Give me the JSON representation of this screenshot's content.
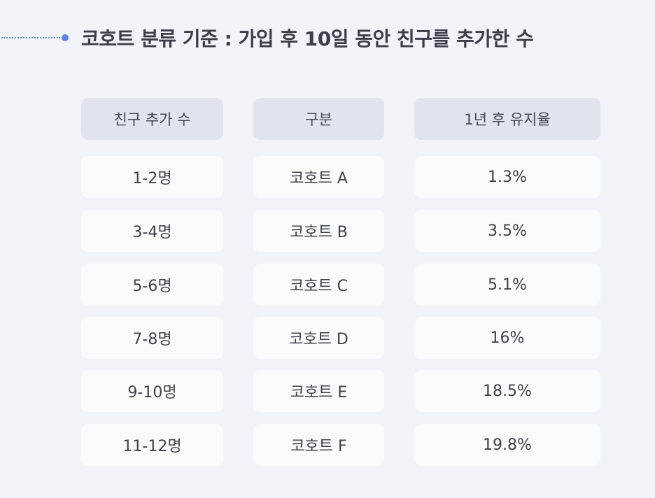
{
  "title": "코호트 분류 기준 : 가입 후 10일 동안 친구를 추가한 수",
  "table": {
    "headers": [
      "친구 추가 수",
      "구분",
      "1년 후 유지율"
    ],
    "rows": [
      [
        "1-2명",
        "코호트 A",
        "1.3%"
      ],
      [
        "3-4명",
        "코호트 B",
        "3.5%"
      ],
      [
        "5-6명",
        "코호트 C",
        "5.1%"
      ],
      [
        "7-8명",
        "코호트 D",
        "16%"
      ],
      [
        "9-10명",
        "코호트 E",
        "18.5%"
      ],
      [
        "11-12명",
        "코호트 F",
        "19.8%"
      ]
    ]
  },
  "colors": {
    "background": "#f0f3f8",
    "header_cell": "#e0e4ec",
    "body_cell": "#f9fafc",
    "accent_dot": "#5b86e0"
  }
}
